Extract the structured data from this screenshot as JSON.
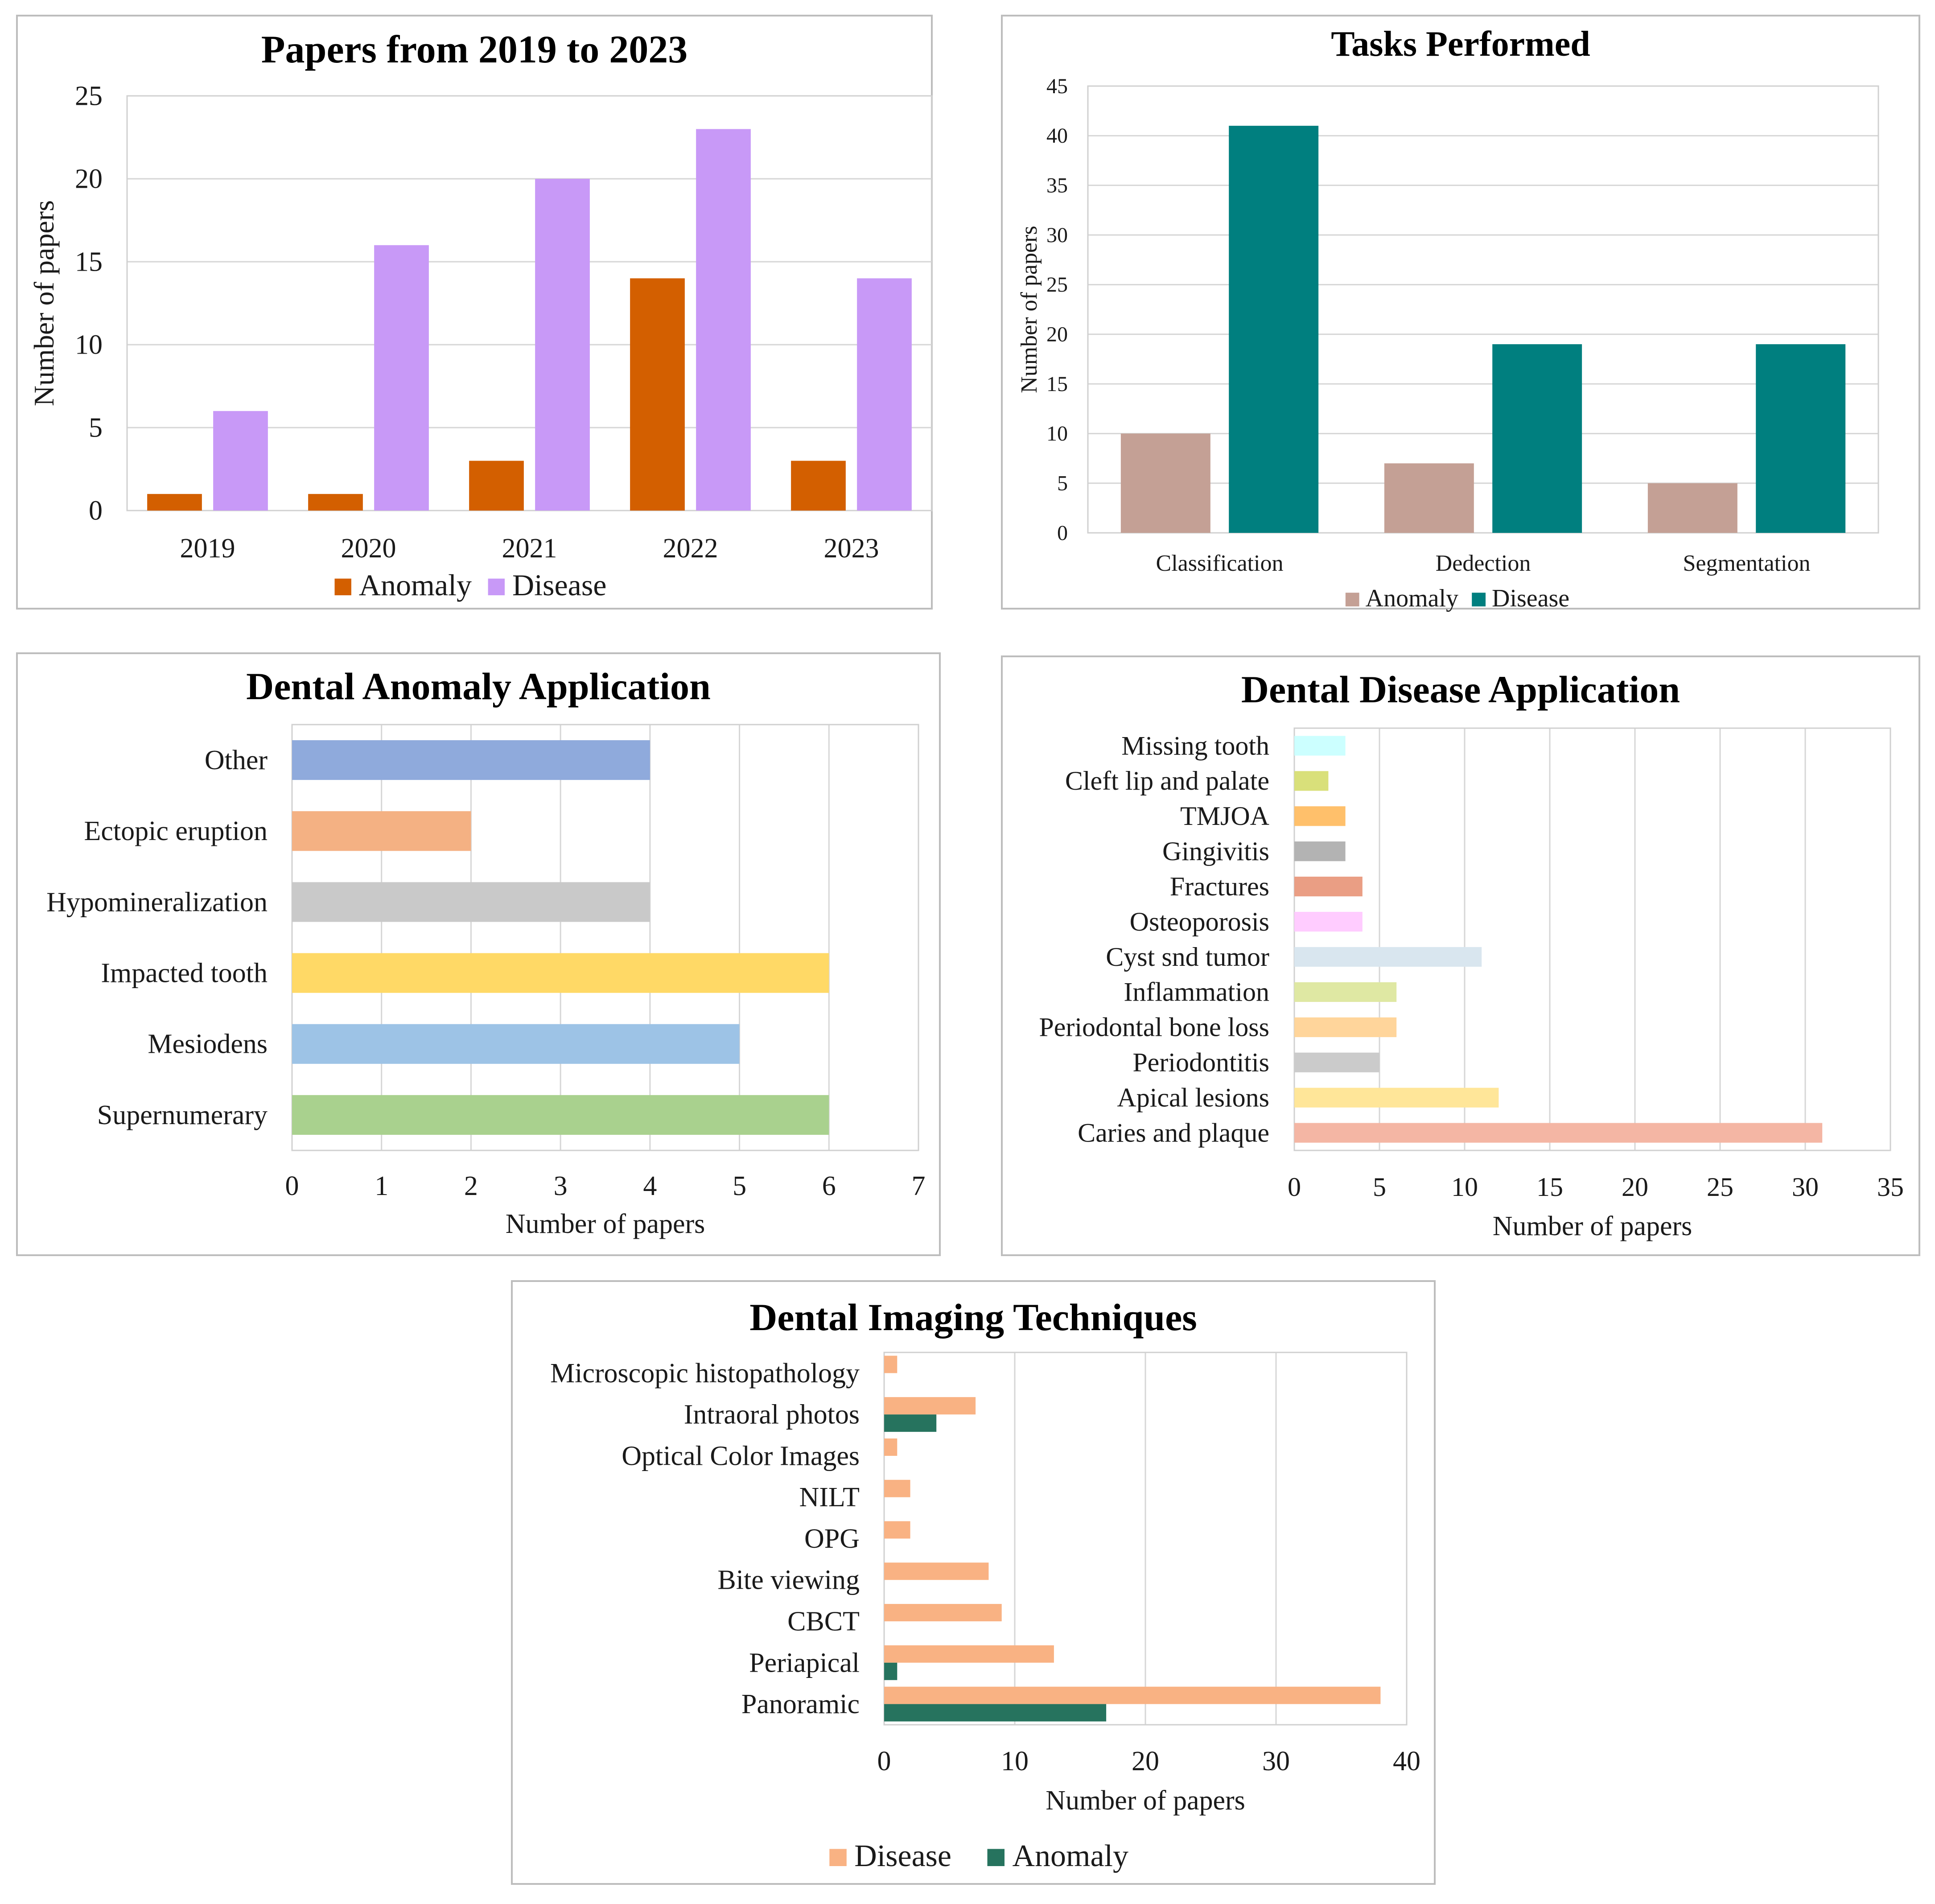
{
  "chart_data": [
    {
      "id": "papers",
      "type": "bar",
      "title": "Papers from 2019 to 2023",
      "xlabel": "",
      "ylabel": "Number of papers",
      "categories": [
        "2019",
        "2020",
        "2021",
        "2022",
        "2023"
      ],
      "series": [
        {
          "name": "Anomaly",
          "color": "#d35f00",
          "values": [
            1,
            1,
            3,
            14,
            3
          ]
        },
        {
          "name": "Disease",
          "color": "#c899f7",
          "values": [
            6,
            16,
            20,
            23,
            14
          ]
        }
      ],
      "ylim": [
        0,
        25
      ],
      "yticks": [
        "0",
        "5",
        "10",
        "15",
        "20",
        "25"
      ],
      "grid": true,
      "legend": "bottom"
    },
    {
      "id": "tasks",
      "type": "bar",
      "title": "Tasks Performed",
      "xlabel": "",
      "ylabel": "Number of papers",
      "categories": [
        "Classification",
        "Dedection",
        "Segmentation"
      ],
      "series": [
        {
          "name": "Anomaly",
          "color": "#c4a095",
          "values": [
            10,
            7,
            5
          ]
        },
        {
          "name": "Disease",
          "color": "#007f7f",
          "values": [
            41,
            19,
            19
          ]
        }
      ],
      "ylim": [
        0,
        45
      ],
      "yticks": [
        "0",
        "5",
        "10",
        "15",
        "20",
        "25",
        "30",
        "35",
        "40",
        "45"
      ],
      "grid": true,
      "legend": "bottom"
    },
    {
      "id": "anomaly",
      "type": "bar",
      "orientation": "horizontal",
      "title": "Dental Anomaly Application",
      "xlabel": "Number of papers",
      "ylabel": "",
      "categories": [
        "Other",
        "Ectopic eruption",
        "Hypomineralization",
        "Impacted tooth",
        "Mesiodens",
        "Supernumerary"
      ],
      "values": [
        4,
        2,
        4,
        6,
        5,
        6
      ],
      "colors": [
        "#8faadc",
        "#f4b183",
        "#c9c9c9",
        "#ffd966",
        "#9dc3e6",
        "#a9d18e"
      ],
      "xlim": [
        0,
        7
      ],
      "xticks": [
        "0",
        "1",
        "2",
        "3",
        "4",
        "5",
        "6",
        "7"
      ],
      "grid": true
    },
    {
      "id": "disease",
      "type": "bar",
      "orientation": "horizontal",
      "title": "Dental Disease Application",
      "xlabel": "Number of papers",
      "ylabel": "",
      "categories": [
        "Missing tooth",
        "Cleft lip and palate",
        "TMJOA",
        "Gingivitis",
        "Fractures",
        "Osteoporosis",
        "Cyst snd tumor",
        "Inflammation",
        "Periodontal bone loss",
        "Periodontitis",
        "Apical lesions",
        "Caries and plaque"
      ],
      "values": [
        3,
        2,
        3,
        3,
        4,
        4,
        11,
        6,
        6,
        5,
        12,
        31
      ],
      "colors": [
        "#ccffff",
        "#d9e07a",
        "#ffc06b",
        "#b3b3b3",
        "#ea9e84",
        "#ffccff",
        "#d9e6ef",
        "#dfe8a3",
        "#ffd59b",
        "#cbcbcb",
        "#ffe699",
        "#f4b6a4"
      ],
      "xlim": [
        0,
        35
      ],
      "xticks": [
        "0",
        "5",
        "10",
        "15",
        "20",
        "25",
        "30",
        "35"
      ],
      "grid": true
    },
    {
      "id": "imaging",
      "type": "bar",
      "orientation": "horizontal",
      "title": "Dental Imaging Techniques",
      "xlabel": "Number of papers",
      "ylabel": "",
      "categories": [
        "Microscopic histopathology",
        "Intraoral photos",
        "Optical Color Images",
        "NILT",
        "OPG",
        "Bite viewing",
        "CBCT",
        "Periapical",
        "Panoramic"
      ],
      "series": [
        {
          "name": "Disease",
          "color": "#f9b283",
          "values": [
            1,
            7,
            1,
            2,
            2,
            8,
            9,
            13,
            38
          ]
        },
        {
          "name": "Anomaly",
          "color": "#26735e",
          "values": [
            0,
            4,
            0,
            0,
            0,
            0,
            0,
            1,
            17
          ]
        }
      ],
      "xlim": [
        0,
        40
      ],
      "xticks": [
        "0",
        "10",
        "20",
        "30",
        "40"
      ],
      "grid": true,
      "legend": "bottom"
    }
  ]
}
